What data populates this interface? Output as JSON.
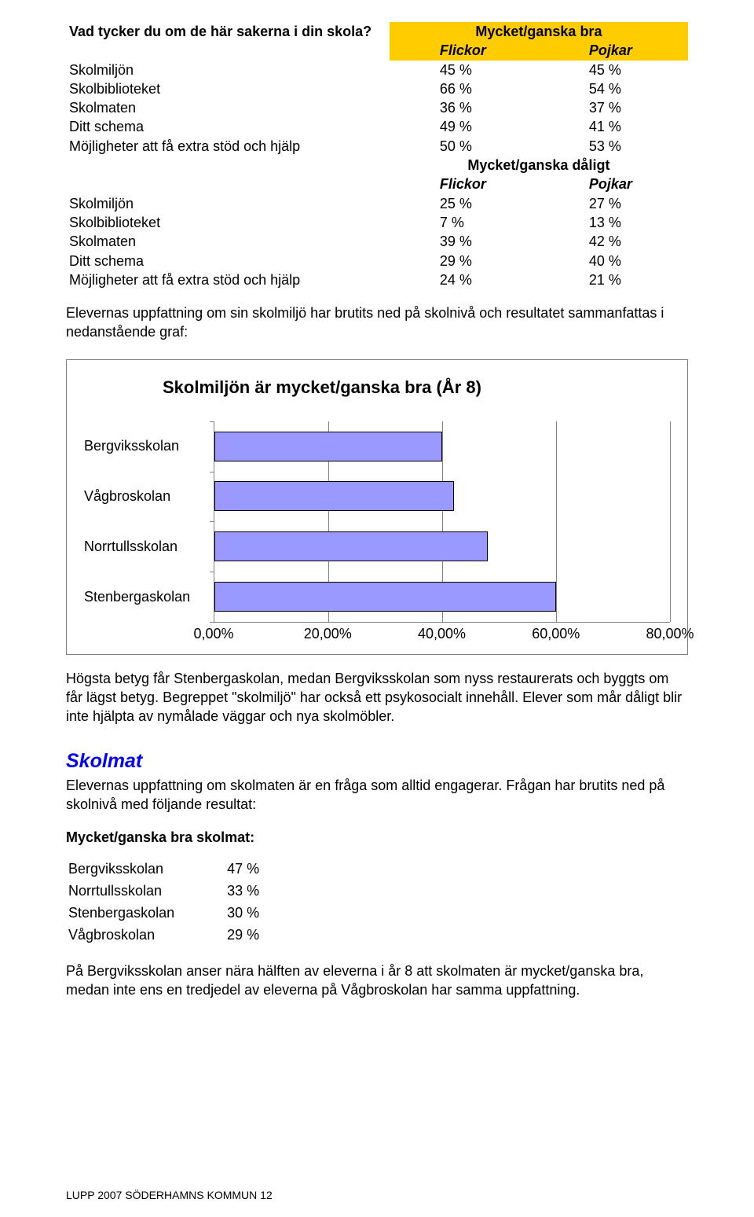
{
  "question": "Vad tycker du om de här sakerna i din skola?",
  "header_good": "Mycket/ganska bra",
  "header_bad": "Mycket/ganska dåligt",
  "col_girls": "Flickor",
  "col_boys": "Pojkar",
  "rows_good": [
    {
      "label": "Skolmiljön",
      "girls": "45 %",
      "boys": "45 %"
    },
    {
      "label": "Skolbiblioteket",
      "girls": "66 %",
      "boys": "54 %"
    },
    {
      "label": "Skolmaten",
      "girls": "36 %",
      "boys": "37 %"
    },
    {
      "label": "Ditt schema",
      "girls": "49 %",
      "boys": "41 %"
    },
    {
      "label": "Möjligheter att få extra stöd och hjälp",
      "girls": "50 %",
      "boys": "53 %"
    }
  ],
  "rows_bad": [
    {
      "label": "Skolmiljön",
      "girls": "25 %",
      "boys": "27 %"
    },
    {
      "label": "Skolbiblioteket",
      "girls": "7 %",
      "boys": "13 %"
    },
    {
      "label": "Skolmaten",
      "girls": "39 %",
      "boys": "42 %"
    },
    {
      "label": "Ditt schema",
      "girls": "29 %",
      "boys": "40 %"
    },
    {
      "label": "Möjligheter att få extra stöd och hjälp",
      "girls": "24 %",
      "boys": "21 %"
    }
  ],
  "para1": "Elevernas uppfattning om sin skolmiljö har brutits ned på skolnivå och resultatet sammanfattas i nedanstående graf:",
  "chart": {
    "type": "bar",
    "title": "Skolmiljön är mycket/ganska bra (År 8)",
    "categories": [
      "Bergviksskolan",
      "Vågbroskolan",
      "Norrtullsskolan",
      "Stenbergaskolan"
    ],
    "values": [
      40,
      42,
      48,
      60
    ],
    "xmin": 0,
    "xmax": 80,
    "xticks": [
      0,
      20,
      40,
      60,
      80
    ],
    "xtick_labels": [
      "0,00%",
      "20,00%",
      "40,00%",
      "60,00%",
      "80,00%"
    ],
    "bar_fill": "#9999ff",
    "bar_border": "#000000",
    "grid_color": "#808080",
    "background": "#ffffff",
    "bar_height_ratio": 0.6,
    "title_fontsize": 22,
    "label_fontsize": 18
  },
  "para2a": "Högsta betyg får Stenbergaskolan, medan Bergviksskolan som nyss restaurerats och byggts om får lägst betyg. Begreppet \"skolmiljö\" har också ett psykosocialt innehåll. Elever som mår dåligt blir inte hjälpta av nymålade väggar och nya skolmöbler.",
  "section2_title": "Skolmat",
  "para3": "Elevernas uppfattning om skolmaten är en fråga som alltid engagerar. Frågan har brutits ned på skolnivå med följande resultat:",
  "subhead": "Mycket/ganska bra skolmat:",
  "skolmat_rows": [
    {
      "label": "Bergviksskolan",
      "val": "47 %"
    },
    {
      "label": "Norrtullsskolan",
      "val": "33 %"
    },
    {
      "label": "Stenbergaskolan",
      "val": "30 %"
    },
    {
      "label": "Vågbroskolan",
      "val": "29 %"
    }
  ],
  "para4": "På Bergviksskolan anser nära hälften av eleverna i år 8 att skolmaten är mycket/ganska bra, medan inte ens en tredjedel av eleverna på Vågbroskolan har samma uppfattning.",
  "footer": "LUPP 2007 SÖDERHAMNS KOMMUN 12"
}
